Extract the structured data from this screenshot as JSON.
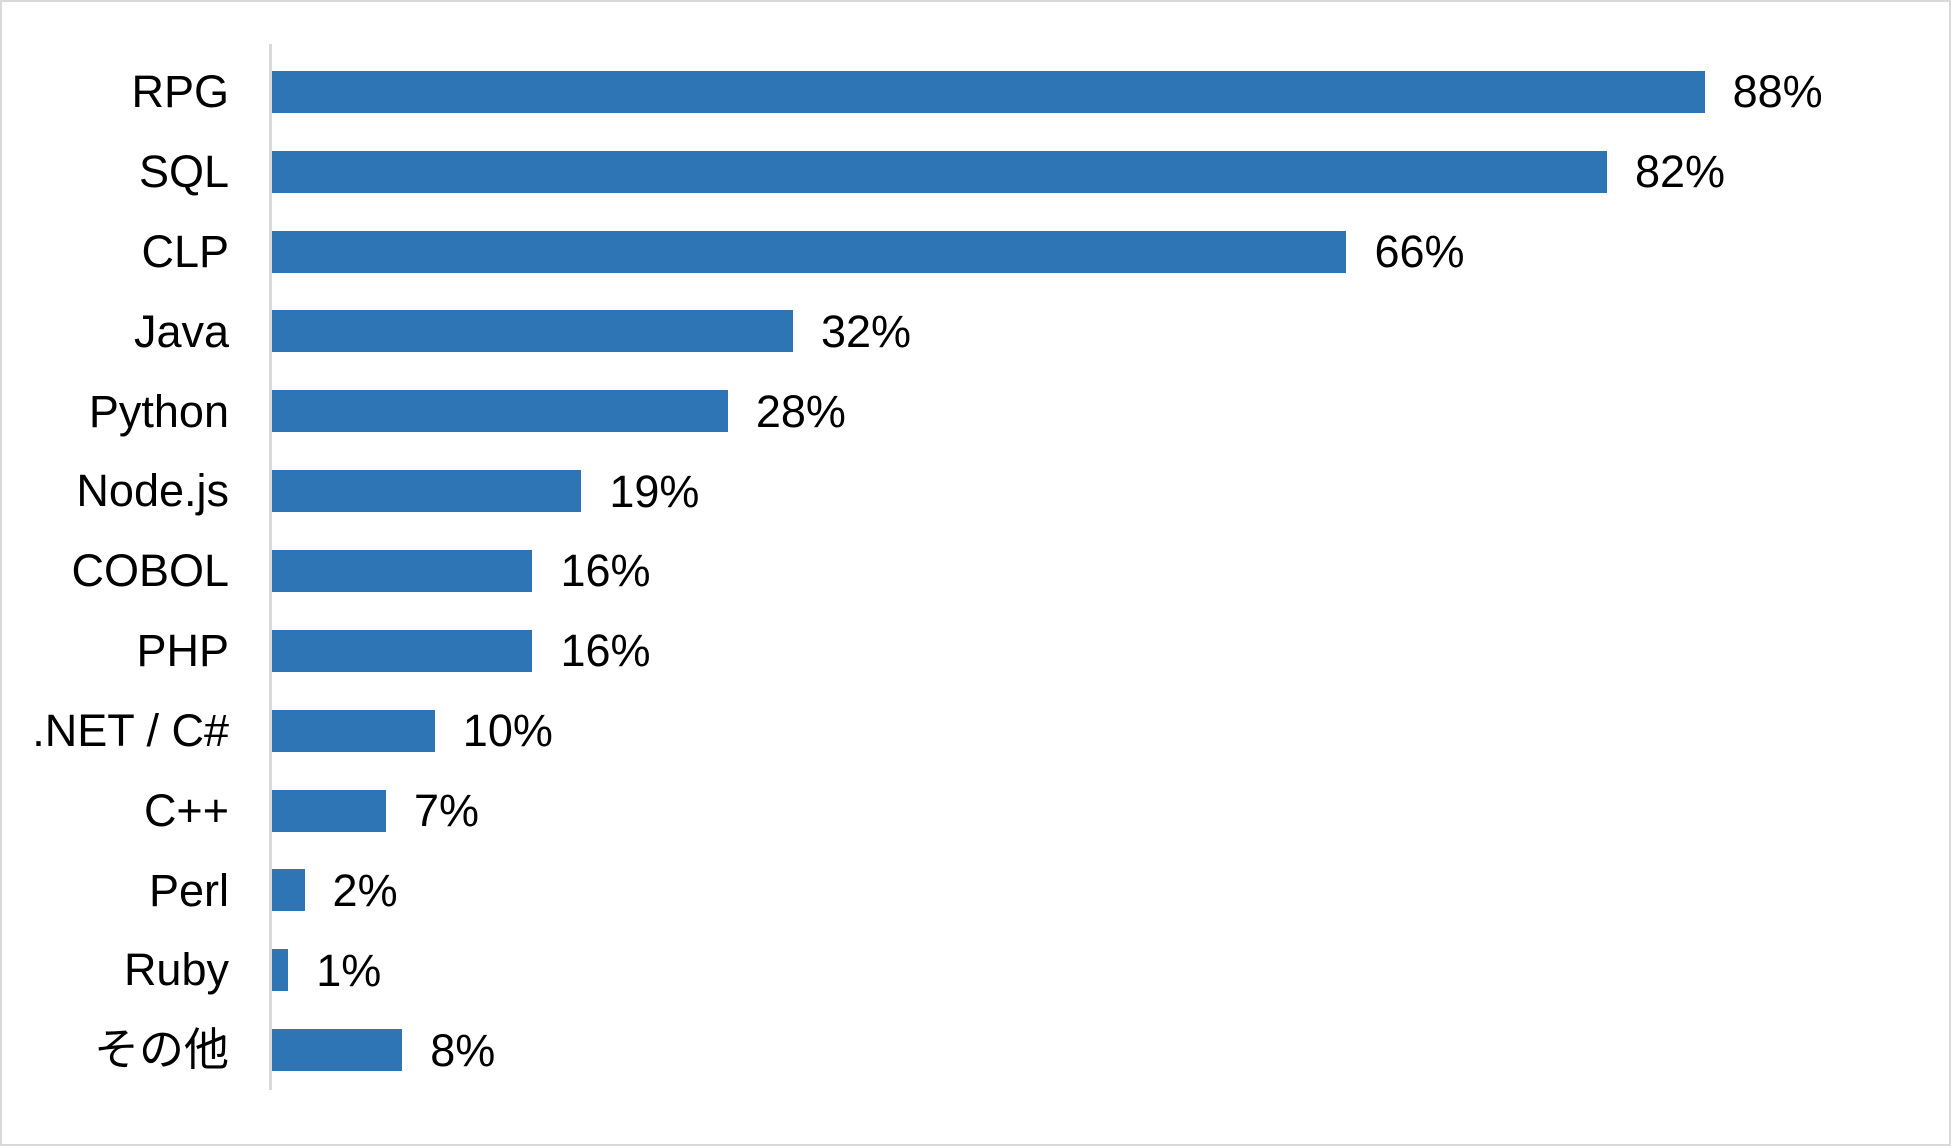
{
  "window": {
    "background": "#ffffff",
    "border_color": "#d9d9d9"
  },
  "chart_data": {
    "type": "bar",
    "orientation": "horizontal",
    "categories": [
      "RPG",
      "SQL",
      "CLP",
      "Java",
      "Python",
      "Node.js",
      "COBOL",
      "PHP",
      ".NET / C#",
      "C++",
      "Perl",
      "Ruby",
      "その他"
    ],
    "values": [
      88,
      82,
      66,
      32,
      28,
      19,
      16,
      16,
      10,
      7,
      2,
      1,
      8
    ],
    "data_labels": [
      "88%",
      "82%",
      "66%",
      "32%",
      "28%",
      "19%",
      "16%",
      "16%",
      "10%",
      "7%",
      "2%",
      "1%",
      "8%"
    ],
    "xlim": [
      0,
      100
    ],
    "bar_color": "#2E75B6",
    "axis_line_color": "#d9d9d9",
    "grid": false,
    "legend": false,
    "title": ""
  }
}
